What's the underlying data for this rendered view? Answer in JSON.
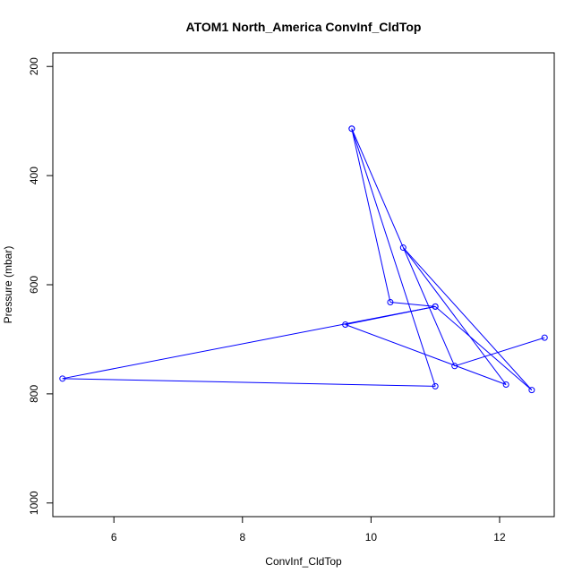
{
  "chart_data": {
    "type": "line",
    "title": "ATOM1 North_America ConvInf_CldTop",
    "xlabel": "ConvInf_CldTop",
    "ylabel": "Pressure (mbar)",
    "xlim": [
      5.05,
      12.85
    ],
    "ylim": [
      1025,
      175
    ],
    "y_reversed": true,
    "xticks": [
      6,
      8,
      10,
      12
    ],
    "yticks": [
      200,
      400,
      600,
      800,
      1000
    ],
    "grid": false,
    "color": "#0000ff",
    "marker": "open-circle",
    "series": [
      {
        "points": [
          {
            "x": 9.7,
            "y": 314
          },
          {
            "x": 10.3,
            "y": 632
          },
          {
            "x": 11.0,
            "y": 640
          },
          {
            "x": 9.6,
            "y": 673
          },
          {
            "x": 12.1,
            "y": 783
          },
          {
            "x": 10.5,
            "y": 532
          },
          {
            "x": 12.5,
            "y": 793
          },
          {
            "x": 11.0,
            "y": 640
          },
          {
            "x": 5.2,
            "y": 772
          },
          {
            "x": 11.0,
            "y": 786
          },
          {
            "x": 9.7,
            "y": 314
          },
          {
            "x": 11.3,
            "y": 749
          },
          {
            "x": 12.7,
            "y": 697
          }
        ]
      }
    ]
  }
}
